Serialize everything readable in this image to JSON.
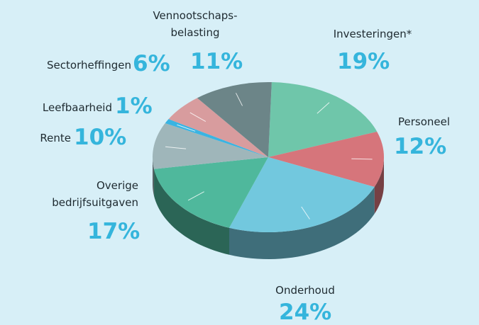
{
  "chart_data": {
    "type": "pie",
    "categories": [
      "Investeringen*",
      "Personeel",
      "Onderhoud",
      "Overige bedrijfsuitgaven",
      "Rente",
      "Leefbaarheid",
      "Sectorheffingen",
      "Vennootschaps-belasting"
    ],
    "values": [
      19,
      12,
      24,
      17,
      10,
      1,
      6,
      11
    ],
    "value_labels": [
      "19%",
      "12%",
      "24%",
      "17%",
      "10%",
      "1%",
      "6%",
      "11%"
    ],
    "colors": [
      "#6fc6aa",
      "#d6757b",
      "#72c8de",
      "#4fb89c",
      "#9fb6ba",
      "#3ab4e2",
      "#d89c9e",
      "#6c8588"
    ]
  }
}
